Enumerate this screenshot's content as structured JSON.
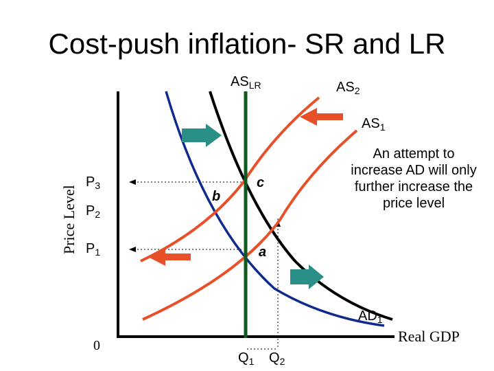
{
  "title": "Cost-push inflation- SR and LR",
  "axes": {
    "y_label": "Price Level",
    "x_label": "Real GDP",
    "origin": "0"
  },
  "curves": {
    "as_lr": {
      "base": "AS",
      "sub": "LR",
      "color": "#0f5a1e"
    },
    "as_2": {
      "base": "AS",
      "sub": "2",
      "color": "#e8502a"
    },
    "as_1": {
      "base": "AS",
      "sub": "1",
      "color": "#e8502a"
    },
    "ad_1": {
      "base": "AD",
      "sub": "1",
      "color": "#0d2a8c"
    },
    "ad_2": {
      "color": "#000000"
    }
  },
  "price_levels": [
    {
      "base": "P",
      "sub": "3"
    },
    {
      "base": "P",
      "sub": "2"
    },
    {
      "base": "P",
      "sub": "1"
    }
  ],
  "quantities": [
    {
      "base": "Q",
      "sub": "1"
    },
    {
      "base": "Q",
      "sub": "2"
    }
  ],
  "points": {
    "a": "a",
    "b": "b",
    "c": "c"
  },
  "annotation": "An attempt to increase AD will only further increase the price level",
  "arrow_colors": {
    "supply_shift": "#e8502a",
    "demand_shift": "#2a8f86"
  }
}
